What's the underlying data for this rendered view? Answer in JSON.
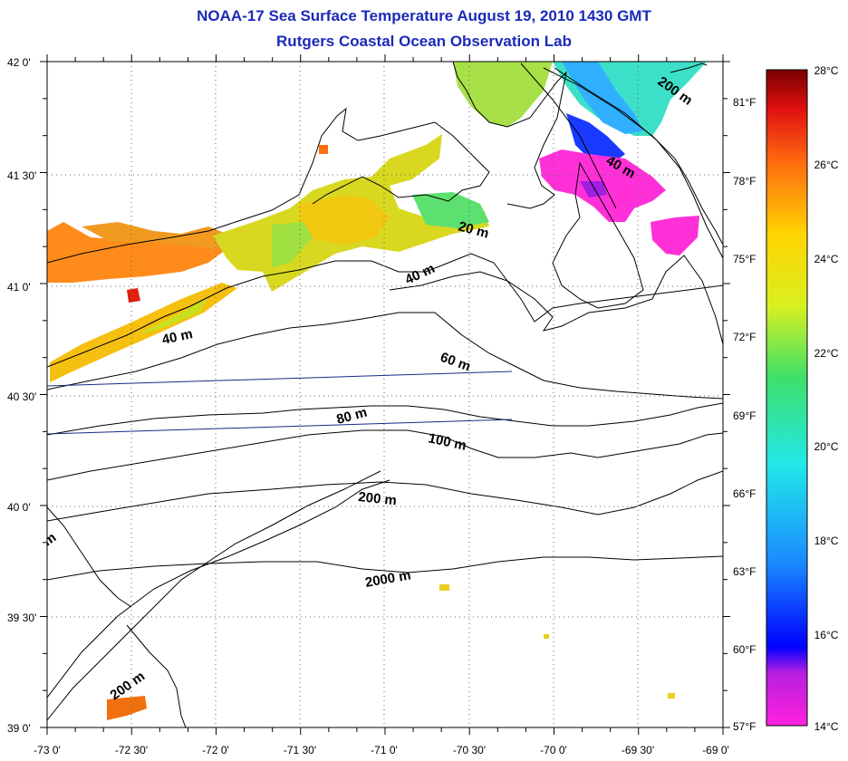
{
  "title": {
    "line1": "NOAA-17 Sea Surface Temperature August 19, 2010 1430 GMT",
    "line2": "Rutgers Coastal Ocean Observation Lab"
  },
  "map": {
    "lon_range": [
      -73.0,
      -69.0
    ],
    "lat_range": [
      39.0,
      42.0
    ],
    "lon_ticks": [
      "-73 0'",
      "-72 30'",
      "-72 0'",
      "-71 30'",
      "-71 0'",
      "-70 30'",
      "-70 0'",
      "-69 30'",
      "-69 0'"
    ],
    "lat_ticks": [
      "42 0'",
      "41 30'",
      "41 0'",
      "40 30'",
      "40 0'",
      "39 30'",
      "39 0'"
    ],
    "grid": "dotted",
    "contour_labels": [
      "200 m",
      "40 m",
      "20 m",
      "40 m",
      "40 m",
      "60 m",
      "80 m",
      "100 m",
      "200 m",
      "2000 m",
      "200 m",
      "m"
    ]
  },
  "colorbar": {
    "celsius_labels": [
      "28°C",
      "26°C",
      "24°C",
      "22°C",
      "20°C",
      "18°C",
      "16°C",
      "14°C"
    ],
    "fahrenheit_labels": [
      "81°F",
      "78°F",
      "75°F",
      "72°F",
      "69°F",
      "66°F",
      "63°F",
      "60°F",
      "57°F"
    ],
    "min_c": 14,
    "max_c": 28
  },
  "colors": {
    "title": "#1c2ab8",
    "track_line": "#1a2a88"
  }
}
